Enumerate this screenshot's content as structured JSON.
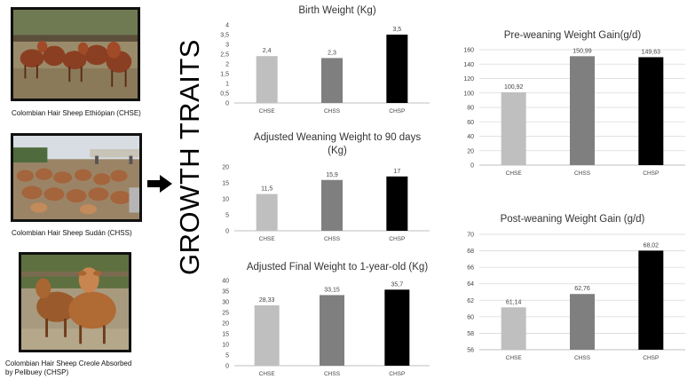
{
  "panel": {
    "side_title": "GROWTH TRAITS",
    "breeds": [
      {
        "caption": "Colombian Hair Sheep Ethiópian (CHSE)"
      },
      {
        "caption": "Colombian Hair Sheep Sudán (CHSS)"
      },
      {
        "caption_line1": "Colombian Hair Sheep Creole Absorbed",
        "caption_line2": "by Pelibuey (CHSP)"
      }
    ]
  },
  "colors": {
    "CHSE": "#bfbfbf",
    "CHSS": "#7f7f7f",
    "CHSP": "#000000",
    "grid": "#d9d9d9",
    "axis": "#bfbfbf"
  },
  "chart_data": [
    {
      "type": "bar",
      "title": "Birth Weight (Kg)",
      "categories": [
        "CHSE",
        "CHSS",
        "CHSP"
      ],
      "values": [
        2.4,
        2.3,
        3.5
      ],
      "labels": [
        "2,4",
        "2,3",
        "3,5"
      ],
      "ylim": [
        0,
        4
      ],
      "yticks": [
        0,
        0.5,
        1,
        1.5,
        2,
        2.5,
        3,
        3.5,
        4
      ],
      "yticklabels": [
        "0",
        "0,5",
        "1",
        "1,5",
        "2",
        "2,5",
        "3",
        "3,5",
        "4"
      ],
      "grid": false
    },
    {
      "type": "bar",
      "title_line1": "Adjusted Weaning Weight to 90 days",
      "title_line2": "(Kg)",
      "categories": [
        "CHSE",
        "CHSS",
        "CHSP"
      ],
      "values": [
        11.5,
        15.9,
        17
      ],
      "labels": [
        "11,5",
        "15,9",
        "17"
      ],
      "ylim": [
        0,
        20
      ],
      "yticks": [
        0,
        5,
        10,
        15,
        20
      ],
      "yticklabels": [
        "0",
        "5",
        "10",
        "15",
        "20"
      ],
      "grid": false
    },
    {
      "type": "bar",
      "title": "Adjusted Final Weight to 1-year-old (Kg)",
      "categories": [
        "CHSE",
        "CHSS",
        "CHSP"
      ],
      "values": [
        28.33,
        33.15,
        35.7
      ],
      "labels": [
        "28,33",
        "33,15",
        "35,7"
      ],
      "ylim": [
        0,
        40
      ],
      "yticks": [
        0,
        5,
        10,
        15,
        20,
        25,
        30,
        35,
        40
      ],
      "yticklabels": [
        "0",
        "5",
        "10",
        "15",
        "20",
        "25",
        "30",
        "35",
        "40"
      ],
      "grid": false
    },
    {
      "type": "bar",
      "title": "Pre-weaning Weight Gain(g/d)",
      "categories": [
        "CHSE",
        "CHSS",
        "CHSP"
      ],
      "values": [
        100.92,
        150.99,
        149.63
      ],
      "labels": [
        "100,92",
        "150,99",
        "149,63"
      ],
      "ylim": [
        0,
        160
      ],
      "yticks": [
        0,
        20,
        40,
        60,
        80,
        100,
        120,
        140,
        160
      ],
      "yticklabels": [
        "0",
        "20",
        "40",
        "60",
        "80",
        "100",
        "120",
        "140",
        "160"
      ],
      "grid": true
    },
    {
      "type": "bar",
      "title": "Post-weaning Weight Gain (g/d)",
      "categories": [
        "CHSE",
        "CHSS",
        "CHSP"
      ],
      "values": [
        61.14,
        62.76,
        68.02
      ],
      "labels": [
        "61,14",
        "62,76",
        "68,02"
      ],
      "ylim": [
        56,
        70
      ],
      "yticks": [
        56,
        58,
        60,
        62,
        64,
        66,
        68,
        70
      ],
      "yticklabels": [
        "56",
        "58",
        "60",
        "62",
        "64",
        "66",
        "68",
        "70"
      ],
      "grid": true
    }
  ]
}
